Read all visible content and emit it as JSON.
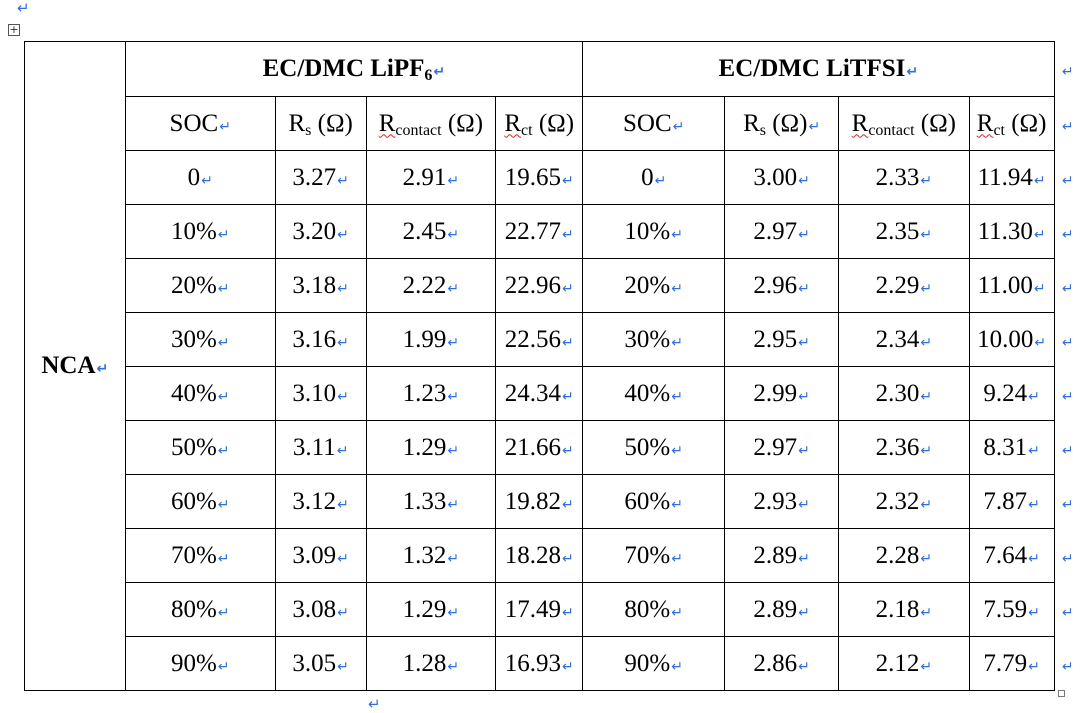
{
  "marks": {
    "para": "↵"
  },
  "table": {
    "row_label": "NCA",
    "groups": [
      {
        "name_main": "EC/DMC LiPF",
        "name_sub": "6"
      },
      {
        "name_main": "EC/DMC LiTFSI",
        "name_sub": ""
      }
    ],
    "columns": {
      "soc": "SOC",
      "rs_main": "R",
      "rs_sub": "s",
      "rs_unit": " (Ω)",
      "rcontact_main": "R",
      "rcontact_sub": "contact",
      "rcontact_unit": " (Ω)",
      "rct_main": "R",
      "rct_sub": "ct",
      "rct_unit": " (Ω)"
    },
    "rows": [
      {
        "soc": "0",
        "lipf6": {
          "rs": "3.27",
          "rcontact": "2.91",
          "rct": "19.65"
        },
        "litfsi": {
          "rs": "3.00",
          "rcontact": "2.33",
          "rct": "11.94"
        }
      },
      {
        "soc": "10%",
        "lipf6": {
          "rs": "3.20",
          "rcontact": "2.45",
          "rct": "22.77"
        },
        "litfsi": {
          "rs": "2.97",
          "rcontact": "2.35",
          "rct": "11.30"
        }
      },
      {
        "soc": "20%",
        "lipf6": {
          "rs": "3.18",
          "rcontact": "2.22",
          "rct": "22.96"
        },
        "litfsi": {
          "rs": "2.96",
          "rcontact": "2.29",
          "rct": "11.00"
        }
      },
      {
        "soc": "30%",
        "lipf6": {
          "rs": "3.16",
          "rcontact": "1.99",
          "rct": "22.56"
        },
        "litfsi": {
          "rs": "2.95",
          "rcontact": "2.34",
          "rct": "10.00"
        }
      },
      {
        "soc": "40%",
        "lipf6": {
          "rs": "3.10",
          "rcontact": "1.23",
          "rct": "24.34"
        },
        "litfsi": {
          "rs": "2.99",
          "rcontact": "2.30",
          "rct": "9.24"
        }
      },
      {
        "soc": "50%",
        "lipf6": {
          "rs": "3.11",
          "rcontact": "1.29",
          "rct": "21.66"
        },
        "litfsi": {
          "rs": "2.97",
          "rcontact": "2.36",
          "rct": "8.31"
        }
      },
      {
        "soc": "60%",
        "lipf6": {
          "rs": "3.12",
          "rcontact": "1.33",
          "rct": "19.82"
        },
        "litfsi": {
          "rs": "2.93",
          "rcontact": "2.32",
          "rct": "7.87"
        }
      },
      {
        "soc": "70%",
        "lipf6": {
          "rs": "3.09",
          "rcontact": "1.32",
          "rct": "18.28"
        },
        "litfsi": {
          "rs": "2.89",
          "rcontact": "2.28",
          "rct": "7.64"
        }
      },
      {
        "soc": "80%",
        "lipf6": {
          "rs": "3.08",
          "rcontact": "1.29",
          "rct": "17.49"
        },
        "litfsi": {
          "rs": "2.89",
          "rcontact": "2.18",
          "rct": "7.59"
        }
      },
      {
        "soc": "90%",
        "lipf6": {
          "rs": "3.05",
          "rcontact": "1.28",
          "rct": "16.93"
        },
        "litfsi": {
          "rs": "2.86",
          "rcontact": "2.12",
          "rct": "7.79"
        }
      }
    ]
  }
}
